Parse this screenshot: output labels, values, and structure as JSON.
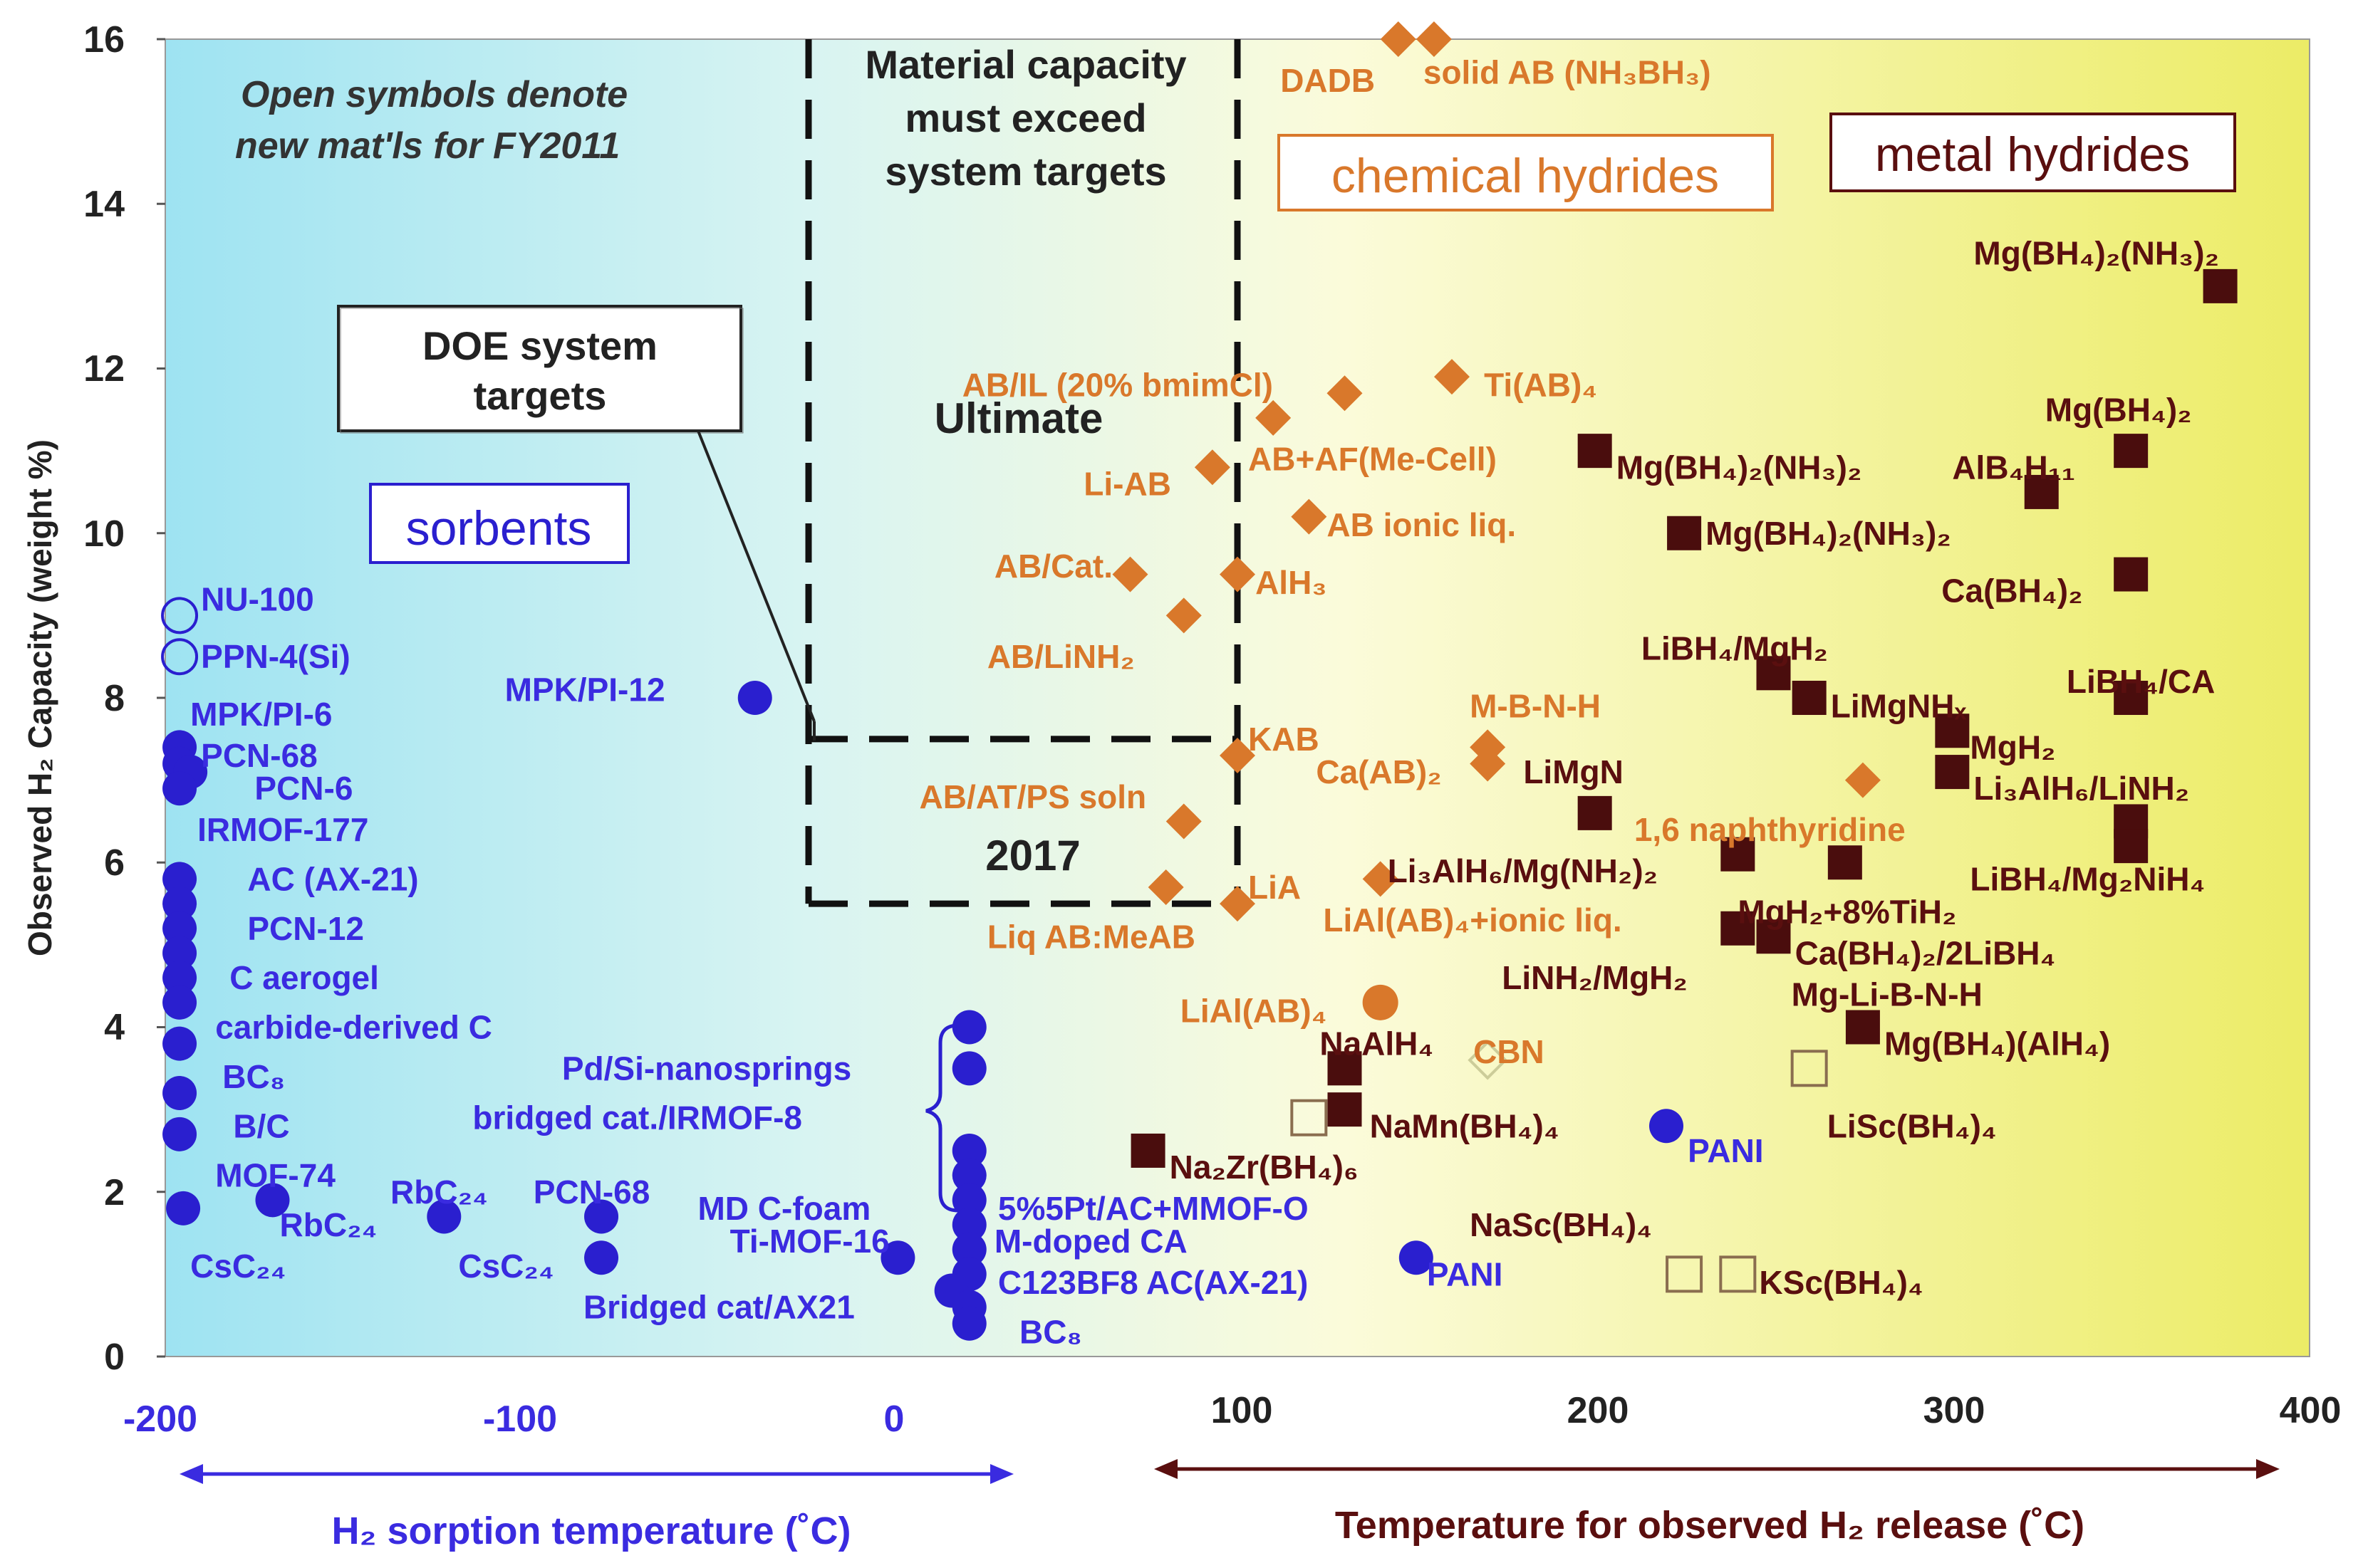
{
  "chart_data": {
    "type": "scatter",
    "title": "",
    "ylabel": "Observed H₂ Capacity (weight %)",
    "ylim": [
      0,
      16
    ],
    "xlim": [
      -200,
      400
    ],
    "yticks": [
      "0",
      "2",
      "4",
      "6",
      "8",
      "10",
      "12",
      "14",
      "16"
    ],
    "xticks_left": [
      "-200",
      "-100",
      "0"
    ],
    "xticks_right": [
      "100",
      "200",
      "300",
      "400"
    ],
    "xlabel_left": "H₂ sorption temperature (˚C)",
    "xlabel_right": "Temperature for observed H₂ release (˚C)",
    "note_line1": "Open symbols denote",
    "note_line2": "new mat'ls for FY2011",
    "targets_box_line1": "Material capacity",
    "targets_box_line2": "must exceed",
    "targets_box_line3": "system targets",
    "doe_line1": "DOE system",
    "doe_line2": "targets",
    "ultimate_label": "Ultimate",
    "label_2017": "2017",
    "targets": {
      "ultimate": {
        "x": [
          -20,
          100
        ],
        "y": [
          5.5,
          16
        ]
      },
      "y2017": {
        "x": [
          -20,
          100
        ],
        "y": [
          5.5,
          7.5
        ]
      }
    },
    "categories": {
      "sorbents": "sorbents",
      "chemical": "chemical hydrides",
      "metal": "metal hydrides"
    },
    "colors": {
      "sorbent": "#2a1fcf",
      "chemical": "#d9782b",
      "metal": "#5a0f0f",
      "metal_fill": "#4a0d0d"
    },
    "series": [
      {
        "name": "sorbents",
        "marker": "circle",
        "points": [
          {
            "x": -196,
            "y": 9.0,
            "open": true
          },
          {
            "x": -196,
            "y": 8.5,
            "open": true
          },
          {
            "x": -35,
            "y": 8.0
          },
          {
            "x": -196,
            "y": 7.4
          },
          {
            "x": -196,
            "y": 7.2
          },
          {
            "x": -193,
            "y": 7.1
          },
          {
            "x": -196,
            "y": 6.9
          },
          {
            "x": -196,
            "y": 5.8
          },
          {
            "x": -196,
            "y": 5.5
          },
          {
            "x": -196,
            "y": 5.2
          },
          {
            "x": -196,
            "y": 4.9
          },
          {
            "x": -196,
            "y": 4.6
          },
          {
            "x": -196,
            "y": 4.3
          },
          {
            "x": -196,
            "y": 3.8
          },
          {
            "x": -196,
            "y": 3.2
          },
          {
            "x": -196,
            "y": 2.7
          },
          {
            "x": -195,
            "y": 1.8
          },
          {
            "x": -170,
            "y": 1.9
          },
          {
            "x": -122,
            "y": 1.7
          },
          {
            "x": -78,
            "y": 1.7
          },
          {
            "x": -78,
            "y": 1.2
          },
          {
            "x": 5,
            "y": 1.2
          },
          {
            "x": 25,
            "y": 4.0
          },
          {
            "x": 25,
            "y": 3.5
          },
          {
            "x": 25,
            "y": 2.5
          },
          {
            "x": 25,
            "y": 2.2
          },
          {
            "x": 25,
            "y": 1.9
          },
          {
            "x": 25,
            "y": 1.6
          },
          {
            "x": 25,
            "y": 1.3
          },
          {
            "x": 25,
            "y": 1.0
          },
          {
            "x": 20,
            "y": 0.8
          },
          {
            "x": 25,
            "y": 0.6
          },
          {
            "x": 25,
            "y": 0.4
          },
          {
            "x": 220,
            "y": 2.8
          },
          {
            "x": 150,
            "y": 1.2
          }
        ]
      },
      {
        "name": "chemical hydrides",
        "marker": "diamond",
        "points": [
          {
            "x": 145,
            "y": 16.0
          },
          {
            "x": 155,
            "y": 16.0
          },
          {
            "x": 110,
            "y": 11.4
          },
          {
            "x": 130,
            "y": 11.7
          },
          {
            "x": 160,
            "y": 11.9
          },
          {
            "x": 93,
            "y": 10.8
          },
          {
            "x": 120,
            "y": 10.2
          },
          {
            "x": 70,
            "y": 9.5
          },
          {
            "x": 100,
            "y": 9.5
          },
          {
            "x": 85,
            "y": 9.0
          },
          {
            "x": 170,
            "y": 7.4
          },
          {
            "x": 170,
            "y": 7.2
          },
          {
            "x": 100,
            "y": 7.3
          },
          {
            "x": 275,
            "y": 7.0
          },
          {
            "x": 85,
            "y": 6.5
          },
          {
            "x": 140,
            "y": 5.8
          },
          {
            "x": 80,
            "y": 5.7
          },
          {
            "x": 100,
            "y": 5.5
          },
          {
            "x": 140,
            "y": 4.3,
            "round": true
          },
          {
            "x": 170,
            "y": 3.6,
            "open": true
          }
        ]
      },
      {
        "name": "metal hydrides",
        "marker": "square",
        "points": [
          {
            "x": 375,
            "y": 13.0
          },
          {
            "x": 350,
            "y": 11.0
          },
          {
            "x": 325,
            "y": 10.5
          },
          {
            "x": 350,
            "y": 9.5
          },
          {
            "x": 200,
            "y": 11.0
          },
          {
            "x": 225,
            "y": 10.0
          },
          {
            "x": 250,
            "y": 8.3
          },
          {
            "x": 260,
            "y": 8.0
          },
          {
            "x": 350,
            "y": 8.0
          },
          {
            "x": 300,
            "y": 7.6
          },
          {
            "x": 300,
            "y": 7.1
          },
          {
            "x": 350,
            "y": 6.5
          },
          {
            "x": 350,
            "y": 6.2
          },
          {
            "x": 200,
            "y": 6.6
          },
          {
            "x": 240,
            "y": 6.1
          },
          {
            "x": 270,
            "y": 6.0
          },
          {
            "x": 240,
            "y": 5.2
          },
          {
            "x": 250,
            "y": 5.1
          },
          {
            "x": 275,
            "y": 4.0
          },
          {
            "x": 130,
            "y": 3.5
          },
          {
            "x": 130,
            "y": 3.0
          },
          {
            "x": 75,
            "y": 2.5
          },
          {
            "x": 120,
            "y": 2.9,
            "open": true
          },
          {
            "x": 260,
            "y": 3.5,
            "open": true
          },
          {
            "x": 225,
            "y": 1.0,
            "open": true
          },
          {
            "x": 240,
            "y": 1.0,
            "open": true
          }
        ]
      }
    ],
    "annotations": [
      {
        "text": "NU-100",
        "x": -190,
        "y": 9.2,
        "color": "sorbent"
      },
      {
        "text": "PPN-4(Si)",
        "x": -190,
        "y": 8.5,
        "color": "sorbent"
      },
      {
        "text": "MPK/PI-6",
        "x": -193,
        "y": 7.8,
        "color": "sorbent"
      },
      {
        "text": "PCN-68",
        "x": -190,
        "y": 7.3,
        "color": "sorbent"
      },
      {
        "text": "PCN-6",
        "x": -175,
        "y": 6.9,
        "color": "sorbent"
      },
      {
        "text": "IRMOF-177",
        "x": -191,
        "y": 6.4,
        "color": "sorbent"
      },
      {
        "text": "AC (AX-21)",
        "x": -177,
        "y": 5.8,
        "color": "sorbent"
      },
      {
        "text": "PCN-12",
        "x": -177,
        "y": 5.2,
        "color": "sorbent"
      },
      {
        "text": "C aerogel",
        "x": -182,
        "y": 4.6,
        "color": "sorbent"
      },
      {
        "text": "carbide-derived C",
        "x": -186,
        "y": 4.0,
        "color": "sorbent"
      },
      {
        "text": "BC₈",
        "x": -184,
        "y": 3.4,
        "color": "sorbent"
      },
      {
        "text": "B/C",
        "x": -181,
        "y": 2.8,
        "color": "sorbent"
      },
      {
        "text": "MOF-74",
        "x": -186,
        "y": 2.2,
        "color": "sorbent"
      },
      {
        "text": "RbC₂₄",
        "x": -137,
        "y": 2.0,
        "color": "sorbent"
      },
      {
        "text": "RbC₂₄",
        "x": -168,
        "y": 1.6,
        "color": "sorbent"
      },
      {
        "text": "CsC₂₄",
        "x": -193,
        "y": 1.1,
        "color": "sorbent"
      },
      {
        "text": "CsC₂₄",
        "x": -118,
        "y": 1.1,
        "color": "sorbent"
      },
      {
        "text": "PCN-68",
        "x": -97,
        "y": 2.0,
        "color": "sorbent"
      },
      {
        "text": "MD C-foam",
        "x": -51,
        "y": 1.8,
        "color": "sorbent"
      },
      {
        "text": "Ti-MOF-16",
        "x": -42,
        "y": 1.4,
        "color": "sorbent"
      },
      {
        "text": "Bridged cat/AX21",
        "x": -83,
        "y": 0.6,
        "color": "sorbent"
      },
      {
        "text": "MPK/PI-12",
        "x": -105,
        "y": 8.1,
        "color": "sorbent"
      },
      {
        "text": "Pd/Si-nanosprings",
        "x": -89,
        "y": 3.5,
        "color": "sorbent"
      },
      {
        "text": "bridged cat./IRMOF-8",
        "x": -114,
        "y": 2.9,
        "color": "sorbent"
      },
      {
        "text": "5%5Pt/AC+MMOF-O",
        "x": 33,
        "y": 1.8,
        "color": "sorbent"
      },
      {
        "text": "M-doped CA",
        "x": 32,
        "y": 1.4,
        "color": "sorbent"
      },
      {
        "text": "C123BF8 AC(AX-21)",
        "x": 33,
        "y": 0.9,
        "color": "sorbent"
      },
      {
        "text": "BC₈",
        "x": 39,
        "y": 0.3,
        "color": "sorbent"
      },
      {
        "text": "PANI",
        "x": 226,
        "y": 2.5,
        "color": "sorbent"
      },
      {
        "text": "PANI",
        "x": 153,
        "y": 1.0,
        "color": "sorbent"
      },
      {
        "text": "DADB",
        "x": 112,
        "y": 15.5,
        "color": "chemical"
      },
      {
        "text": "solid AB (NH₃BH₃)",
        "x": 152,
        "y": 15.6,
        "color": "chemical"
      },
      {
        "text": "AB/IL (20% bmimCl)",
        "x": 23,
        "y": 11.8,
        "color": "chemical"
      },
      {
        "text": "Ti(AB)₄",
        "x": 169,
        "y": 11.8,
        "color": "chemical"
      },
      {
        "text": "Li-AB",
        "x": 57,
        "y": 10.6,
        "color": "chemical"
      },
      {
        "text": "AB+AF(Me-Cell)",
        "x": 103,
        "y": 10.9,
        "color": "chemical"
      },
      {
        "text": "AB ionic liq.",
        "x": 125,
        "y": 10.1,
        "color": "chemical"
      },
      {
        "text": "AB/Cat.",
        "x": 32,
        "y": 9.6,
        "color": "chemical"
      },
      {
        "text": "AlH₃",
        "x": 105,
        "y": 9.4,
        "color": "chemical"
      },
      {
        "text": "AB/LiNH₂",
        "x": 30,
        "y": 8.5,
        "color": "chemical"
      },
      {
        "text": "M-B-N-H",
        "x": 165,
        "y": 7.9,
        "color": "chemical"
      },
      {
        "text": "KAB",
        "x": 103,
        "y": 7.5,
        "color": "chemical"
      },
      {
        "text": "Ca(AB)₂",
        "x": 122,
        "y": 7.1,
        "color": "chemical"
      },
      {
        "text": "AB/AT/PS soln",
        "x": 11,
        "y": 6.8,
        "color": "chemical"
      },
      {
        "text": "1,6 naphthyridine",
        "x": 211,
        "y": 6.4,
        "color": "chemical"
      },
      {
        "text": "LiA",
        "x": 103,
        "y": 5.7,
        "color": "chemical"
      },
      {
        "text": "LiAl(AB)₄+ionic liq.",
        "x": 124,
        "y": 5.3,
        "color": "chemical"
      },
      {
        "text": "Liq AB:MeAB",
        "x": 30,
        "y": 5.1,
        "color": "chemical"
      },
      {
        "text": "LiAl(AB)₄",
        "x": 84,
        "y": 4.2,
        "color": "chemical"
      },
      {
        "text": "CBN",
        "x": 166,
        "y": 3.7,
        "color": "chemical"
      },
      {
        "text": "Mg(BH₄)₂(NH₃)₂",
        "x": 306,
        "y": 13.4,
        "color": "metal"
      },
      {
        "text": "Mg(BH₄)₂",
        "x": 326,
        "y": 11.5,
        "color": "metal"
      },
      {
        "text": "AlB₄H₁₁",
        "x": 300,
        "y": 10.8,
        "color": "metal"
      },
      {
        "text": "Mg(BH₄)₂(NH₃)₂",
        "x": 206,
        "y": 10.8,
        "color": "metal"
      },
      {
        "text": "Mg(BH₄)₂(NH₃)₂",
        "x": 231,
        "y": 10.0,
        "color": "metal"
      },
      {
        "text": "Ca(BH₄)₂",
        "x": 297,
        "y": 9.3,
        "color": "metal"
      },
      {
        "text": "LiBH₄/MgH₂",
        "x": 213,
        "y": 8.6,
        "color": "metal"
      },
      {
        "text": "LiMgNHₓ",
        "x": 266,
        "y": 7.9,
        "color": "metal"
      },
      {
        "text": "LiBH₄/CA",
        "x": 332,
        "y": 8.2,
        "color": "metal"
      },
      {
        "text": "LiMgN",
        "x": 180,
        "y": 7.1,
        "color": "metal"
      },
      {
        "text": "MgH₂",
        "x": 305,
        "y": 7.4,
        "color": "metal"
      },
      {
        "text": "Li₃AlH₆/LiNH₂",
        "x": 306,
        "y": 6.9,
        "color": "metal"
      },
      {
        "text": "Li₃AlH₆/Mg(NH₂)₂",
        "x": 142,
        "y": 5.9,
        "color": "metal"
      },
      {
        "text": "LiBH₄/Mg₂NiH₄",
        "x": 305,
        "y": 5.8,
        "color": "metal"
      },
      {
        "text": "MgH₂+8%TiH₂",
        "x": 240,
        "y": 5.4,
        "color": "metal"
      },
      {
        "text": "Ca(BH₄)₂/2LiBH₄",
        "x": 256,
        "y": 4.9,
        "color": "metal"
      },
      {
        "text": "LiNH₂/MgH₂",
        "x": 174,
        "y": 4.6,
        "color": "metal"
      },
      {
        "text": "Mg-Li-B-N-H",
        "x": 255,
        "y": 4.4,
        "color": "metal"
      },
      {
        "text": "NaAlH₄",
        "x": 123,
        "y": 3.8,
        "color": "metal"
      },
      {
        "text": "Mg(BH₄)(AlH₄)",
        "x": 281,
        "y": 3.8,
        "color": "metal"
      },
      {
        "text": "NaMn(BH₄)₄",
        "x": 137,
        "y": 2.8,
        "color": "metal"
      },
      {
        "text": "LiSc(BH₄)₄",
        "x": 265,
        "y": 2.8,
        "color": "metal"
      },
      {
        "text": "Na₂Zr(BH₄)₆",
        "x": 81,
        "y": 2.3,
        "color": "metal"
      },
      {
        "text": "NaSc(BH₄)₄",
        "x": 165,
        "y": 1.6,
        "color": "metal"
      },
      {
        "text": "KSc(BH₄)₄",
        "x": 246,
        "y": 0.9,
        "color": "metal"
      }
    ]
  }
}
